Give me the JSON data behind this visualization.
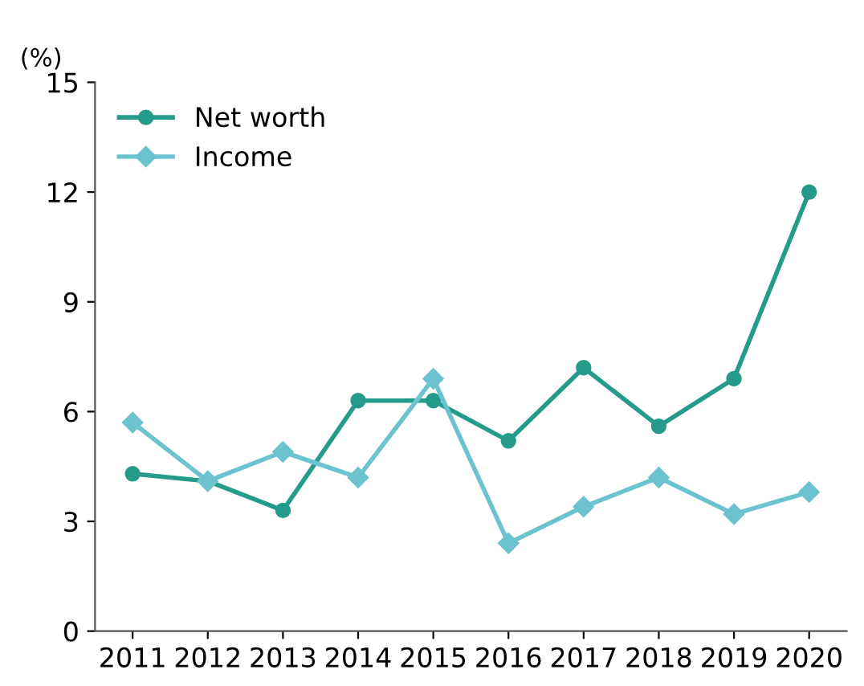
{
  "chart_data": {
    "type": "line",
    "ylabel": "(%)",
    "categories": [
      "2011",
      "2012",
      "2013",
      "2014",
      "2015",
      "2016",
      "2017",
      "2018",
      "2019",
      "2020"
    ],
    "series": [
      {
        "name": "Net worth",
        "color": "#259b8a",
        "marker": "circle",
        "values": [
          4.3,
          4.1,
          3.3,
          6.3,
          6.3,
          5.2,
          7.2,
          5.6,
          6.9,
          12.0
        ]
      },
      {
        "name": "Income",
        "color": "#6cc3cf",
        "marker": "diamond",
        "values": [
          5.7,
          4.1,
          4.9,
          4.2,
          6.9,
          2.4,
          3.4,
          4.2,
          3.2,
          3.8
        ]
      }
    ],
    "ylim": [
      0,
      15
    ],
    "yticks": [
      0,
      3,
      6,
      9,
      12,
      15
    ],
    "grid": false,
    "legend": "top left"
  }
}
